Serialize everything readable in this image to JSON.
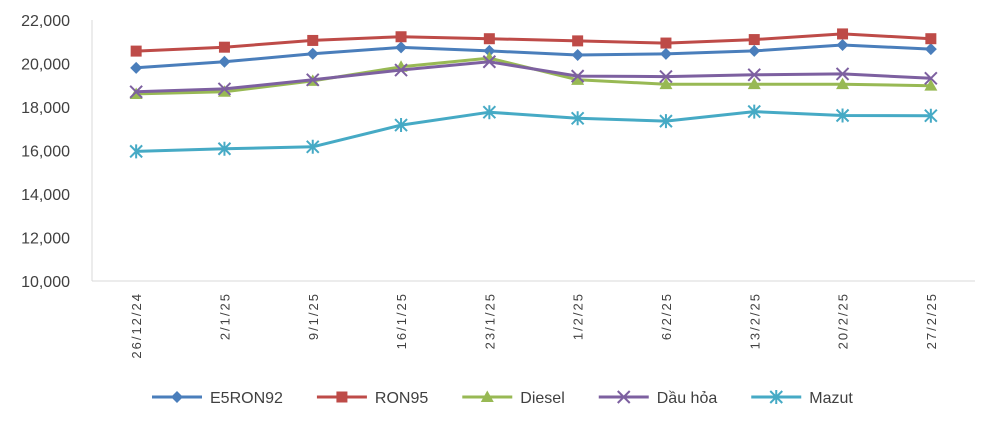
{
  "chart_data": {
    "type": "line",
    "title": "",
    "xlabel": "",
    "ylabel": "",
    "categories": [
      "26/12/24",
      "2/1/25",
      "9/1/25",
      "16/1/25",
      "23/1/25",
      "1/2/25",
      "6/2/25",
      "13/2/25",
      "20/2/25",
      "27/2/25"
    ],
    "ylim": [
      10000,
      22000
    ],
    "yticks": [
      10000,
      12000,
      14000,
      16000,
      18000,
      20000,
      22000
    ],
    "ytick_labels": [
      "10,000",
      "12,000",
      "14,000",
      "16,000",
      "18,000",
      "20,000",
      "22,000"
    ],
    "grid": false,
    "legend_position": "bottom",
    "series": [
      {
        "name": "E5RON92",
        "color": "#4A7EBB",
        "marker": "diamond",
        "values": [
          19800,
          20080,
          20450,
          20740,
          20580,
          20390,
          20440,
          20580,
          20850,
          20660
        ]
      },
      {
        "name": "RON95",
        "color": "#BE4B48",
        "marker": "square",
        "values": [
          20570,
          20750,
          21060,
          21230,
          21140,
          21040,
          20940,
          21100,
          21360,
          21140
        ]
      },
      {
        "name": "Diesel",
        "color": "#98B954",
        "marker": "triangle",
        "values": [
          18600,
          18700,
          19200,
          19850,
          20250,
          19250,
          19050,
          19050,
          19050,
          18980
        ]
      },
      {
        "name": "Dầu hỏa",
        "color": "#7D60A0",
        "marker": "x",
        "values": [
          18700,
          18830,
          19250,
          19700,
          20080,
          19420,
          19400,
          19480,
          19520,
          19320
        ]
      },
      {
        "name": "Mazut",
        "color": "#46AAC5",
        "marker": "star",
        "values": [
          15960,
          16080,
          16170,
          17170,
          17760,
          17480,
          17350,
          17790,
          17610,
          17600
        ]
      }
    ]
  }
}
